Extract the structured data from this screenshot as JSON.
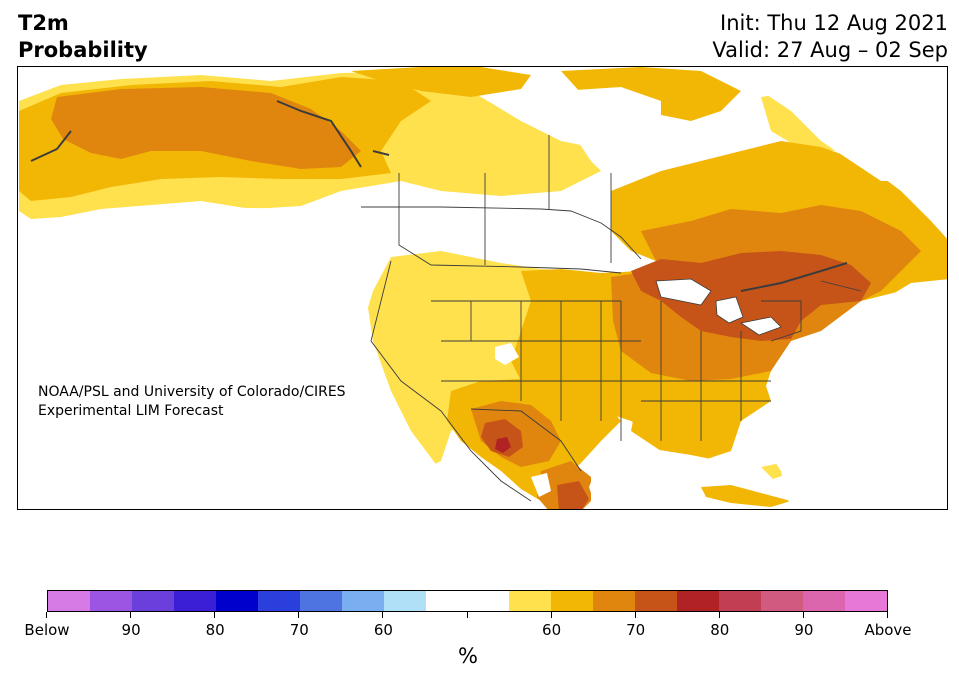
{
  "header": {
    "title_line1": "T2m",
    "title_line2": "Probability",
    "init_text": "Init: Thu 12 Aug 2021",
    "valid_text": "Valid: 27 Aug – 02 Sep"
  },
  "map": {
    "credit_line1": "NOAA/PSL and University of Colorado/CIRES",
    "credit_line2": "Experimental LIM Forecast"
  },
  "colorbar": {
    "colors": [
      "#d67ae6",
      "#9b55e2",
      "#6a3fdc",
      "#3a1fd6",
      "#0000cd",
      "#2a3fdc",
      "#4e74e2",
      "#79aef0",
      "#b0dff8",
      "#ffffff",
      "#ffffff",
      "#ffe04d",
      "#f2b705",
      "#e0860f",
      "#c65418",
      "#b02223",
      "#c23e52",
      "#d05a80",
      "#dc66ae",
      "#e878d8"
    ],
    "labels": [
      "Below",
      "90",
      "80",
      "70",
      "60",
      "",
      "60",
      "70",
      "80",
      "90",
      "Above"
    ],
    "unit": "%"
  },
  "palette": {
    "cat60": "#ffe04d",
    "cat70": "#f2b705",
    "cat80": "#e0860f",
    "cat90": "#c65418",
    "cat_above": "#b02223",
    "land_white": "#ffffff",
    "coast": "#3c3c3c"
  }
}
